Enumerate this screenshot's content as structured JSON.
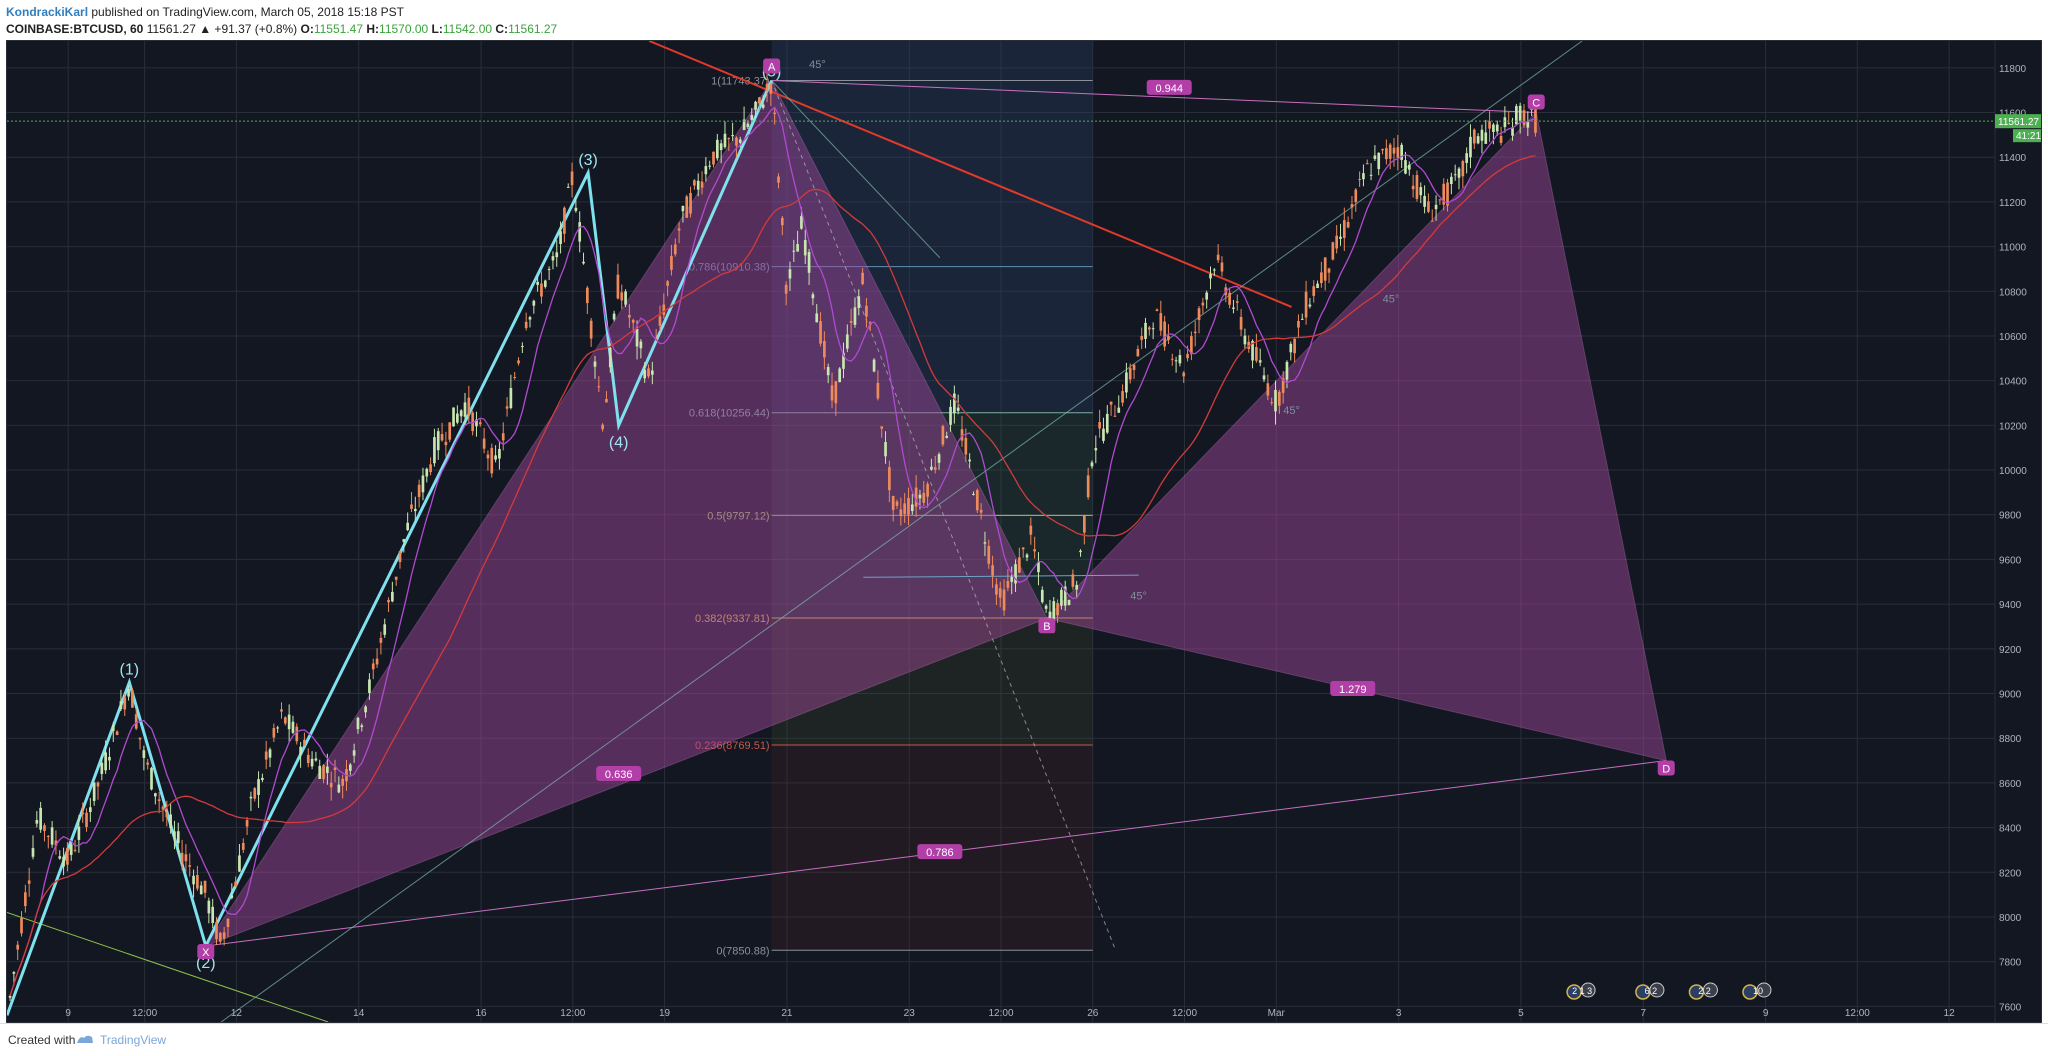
{
  "header": {
    "author": "KondrackiKarl",
    "published": "published on TradingView.com, March 05, 2018 15:18 PST",
    "symbol": "COINBASE:BTCUSD, 60",
    "last": "11561.27",
    "change": "▲ +91.37 (+0.8%)",
    "o_label": "O:",
    "o_value": "11551.47",
    "h_label": "H:",
    "h_value": "11570.00",
    "l_label": "L:",
    "l_value": "11542.00",
    "c_label": "C:",
    "c_value": "11561.27"
  },
  "footer": {
    "created": "Created with",
    "brand": "TradingView",
    "logo_icon": "tradingview-logo-icon"
  },
  "colors": {
    "background": "#131722",
    "grid": "#2a2e39",
    "up": "#c8e6b0",
    "down": "#ef8a5a",
    "pattern_fill": "#a84aa0",
    "pattern_line": "#c86fc0",
    "wave_line": "#7fe1ee",
    "ma_fast": "#b04ad0",
    "ma_slow": "#d23b3b",
    "trend_red": "#e03a2a",
    "price_line": "#4caf50"
  },
  "chart_data": {
    "type": "line",
    "title": "",
    "symbol": "COINBASE:BTCUSD",
    "interval": "60",
    "ylim": [
      7530,
      11920
    ],
    "y_ticks": [
      7600,
      7800,
      8000,
      8200,
      8400,
      8600,
      8800,
      9000,
      9200,
      9400,
      9600,
      9800,
      10000,
      10200,
      10400,
      10600,
      10800,
      11000,
      11200,
      11400,
      11600,
      11800
    ],
    "x_ticks": [
      "9",
      "12:00",
      "12",
      "14",
      "16",
      "12:00",
      "19",
      "21",
      "23",
      "12:00",
      "26",
      "12:00",
      "Mar",
      "3",
      "5",
      "7",
      "9",
      "12:00",
      "12"
    ],
    "x_tick_index": [
      4,
      9,
      15,
      23,
      31,
      37,
      43,
      51,
      59,
      65,
      71,
      77,
      83,
      91,
      99,
      107,
      115,
      121,
      127
    ],
    "x_range": [
      0,
      130
    ],
    "grid": true,
    "last_price": {
      "value": "11561.27",
      "countdown": "41:21"
    },
    "series": [
      {
        "name": "",
        "x": [
          0,
          2,
          4,
          6,
          8,
          9,
          11,
          13,
          14,
          16,
          18,
          20,
          22,
          24,
          26,
          28,
          30,
          32,
          34,
          36,
          37,
          39,
          40,
          42,
          44,
          46,
          48,
          49,
          50,
          51,
          52,
          54,
          56,
          58,
          60,
          62,
          63,
          65,
          67,
          68,
          70,
          71,
          73,
          75,
          77,
          79,
          81,
          83,
          85,
          87,
          89,
          91,
          93,
          95,
          96,
          98,
          99,
          100
        ],
        "values": [
          7550,
          8450,
          8250,
          8600,
          9050,
          8700,
          8350,
          8100,
          7870,
          8500,
          8900,
          8700,
          8600,
          9100,
          9700,
          10100,
          10300,
          10000,
          10700,
          10950,
          11320,
          10200,
          10850,
          10400,
          11100,
          11400,
          11500,
          11600,
          11743,
          10800,
          11100,
          10300,
          10850,
          9800,
          9900,
          10300,
          10000,
          9400,
          9700,
          9337,
          9500,
          10100,
          10350,
          10700,
          10450,
          10950,
          10600,
          10300,
          10750,
          11000,
          11350,
          11450,
          11150,
          11300,
          11500,
          11520,
          11600,
          11561
        ]
      }
    ],
    "annotations": {
      "waves": [
        "(1)",
        "(2)",
        "(3)",
        "(4)",
        "(5)"
      ],
      "points": [
        "X",
        "A",
        "B",
        "C",
        "D"
      ],
      "ratios": [
        "0.944",
        "0.636",
        "1.279",
        "0.786"
      ],
      "fib_levels": [
        "1(11743.37)",
        "0.786(10910.38)",
        "0.618(10256.44)",
        "0.5(9797.12)",
        "0.382(9337.81)",
        "0.236(8769.51)",
        "0(7850.88)"
      ],
      "angles": [
        "45°",
        "45°",
        "45°",
        "45°"
      ],
      "events": [
        "2 1 3",
        "6 2",
        "2 2",
        "10"
      ]
    }
  }
}
